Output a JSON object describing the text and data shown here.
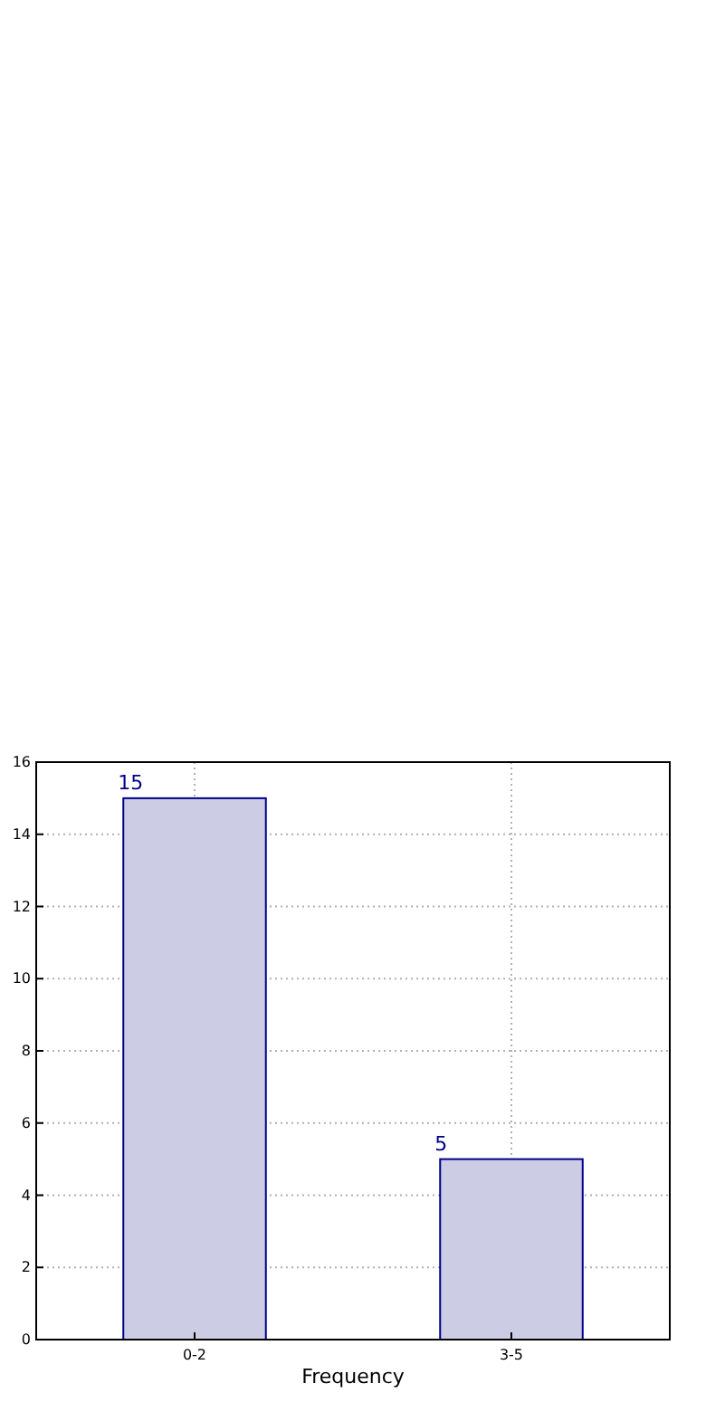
{
  "chart_data": {
    "type": "bar",
    "xlabel": "Frequency",
    "categories": [
      "0-2",
      "3-5"
    ],
    "values": [
      15,
      5
    ],
    "color": "#ccccE5",
    "data_labels": true,
    "ylim": [
      0,
      16
    ],
    "yticks": [
      0,
      2,
      4,
      6,
      8,
      10,
      12,
      14,
      16
    ],
    "grid": true
  }
}
